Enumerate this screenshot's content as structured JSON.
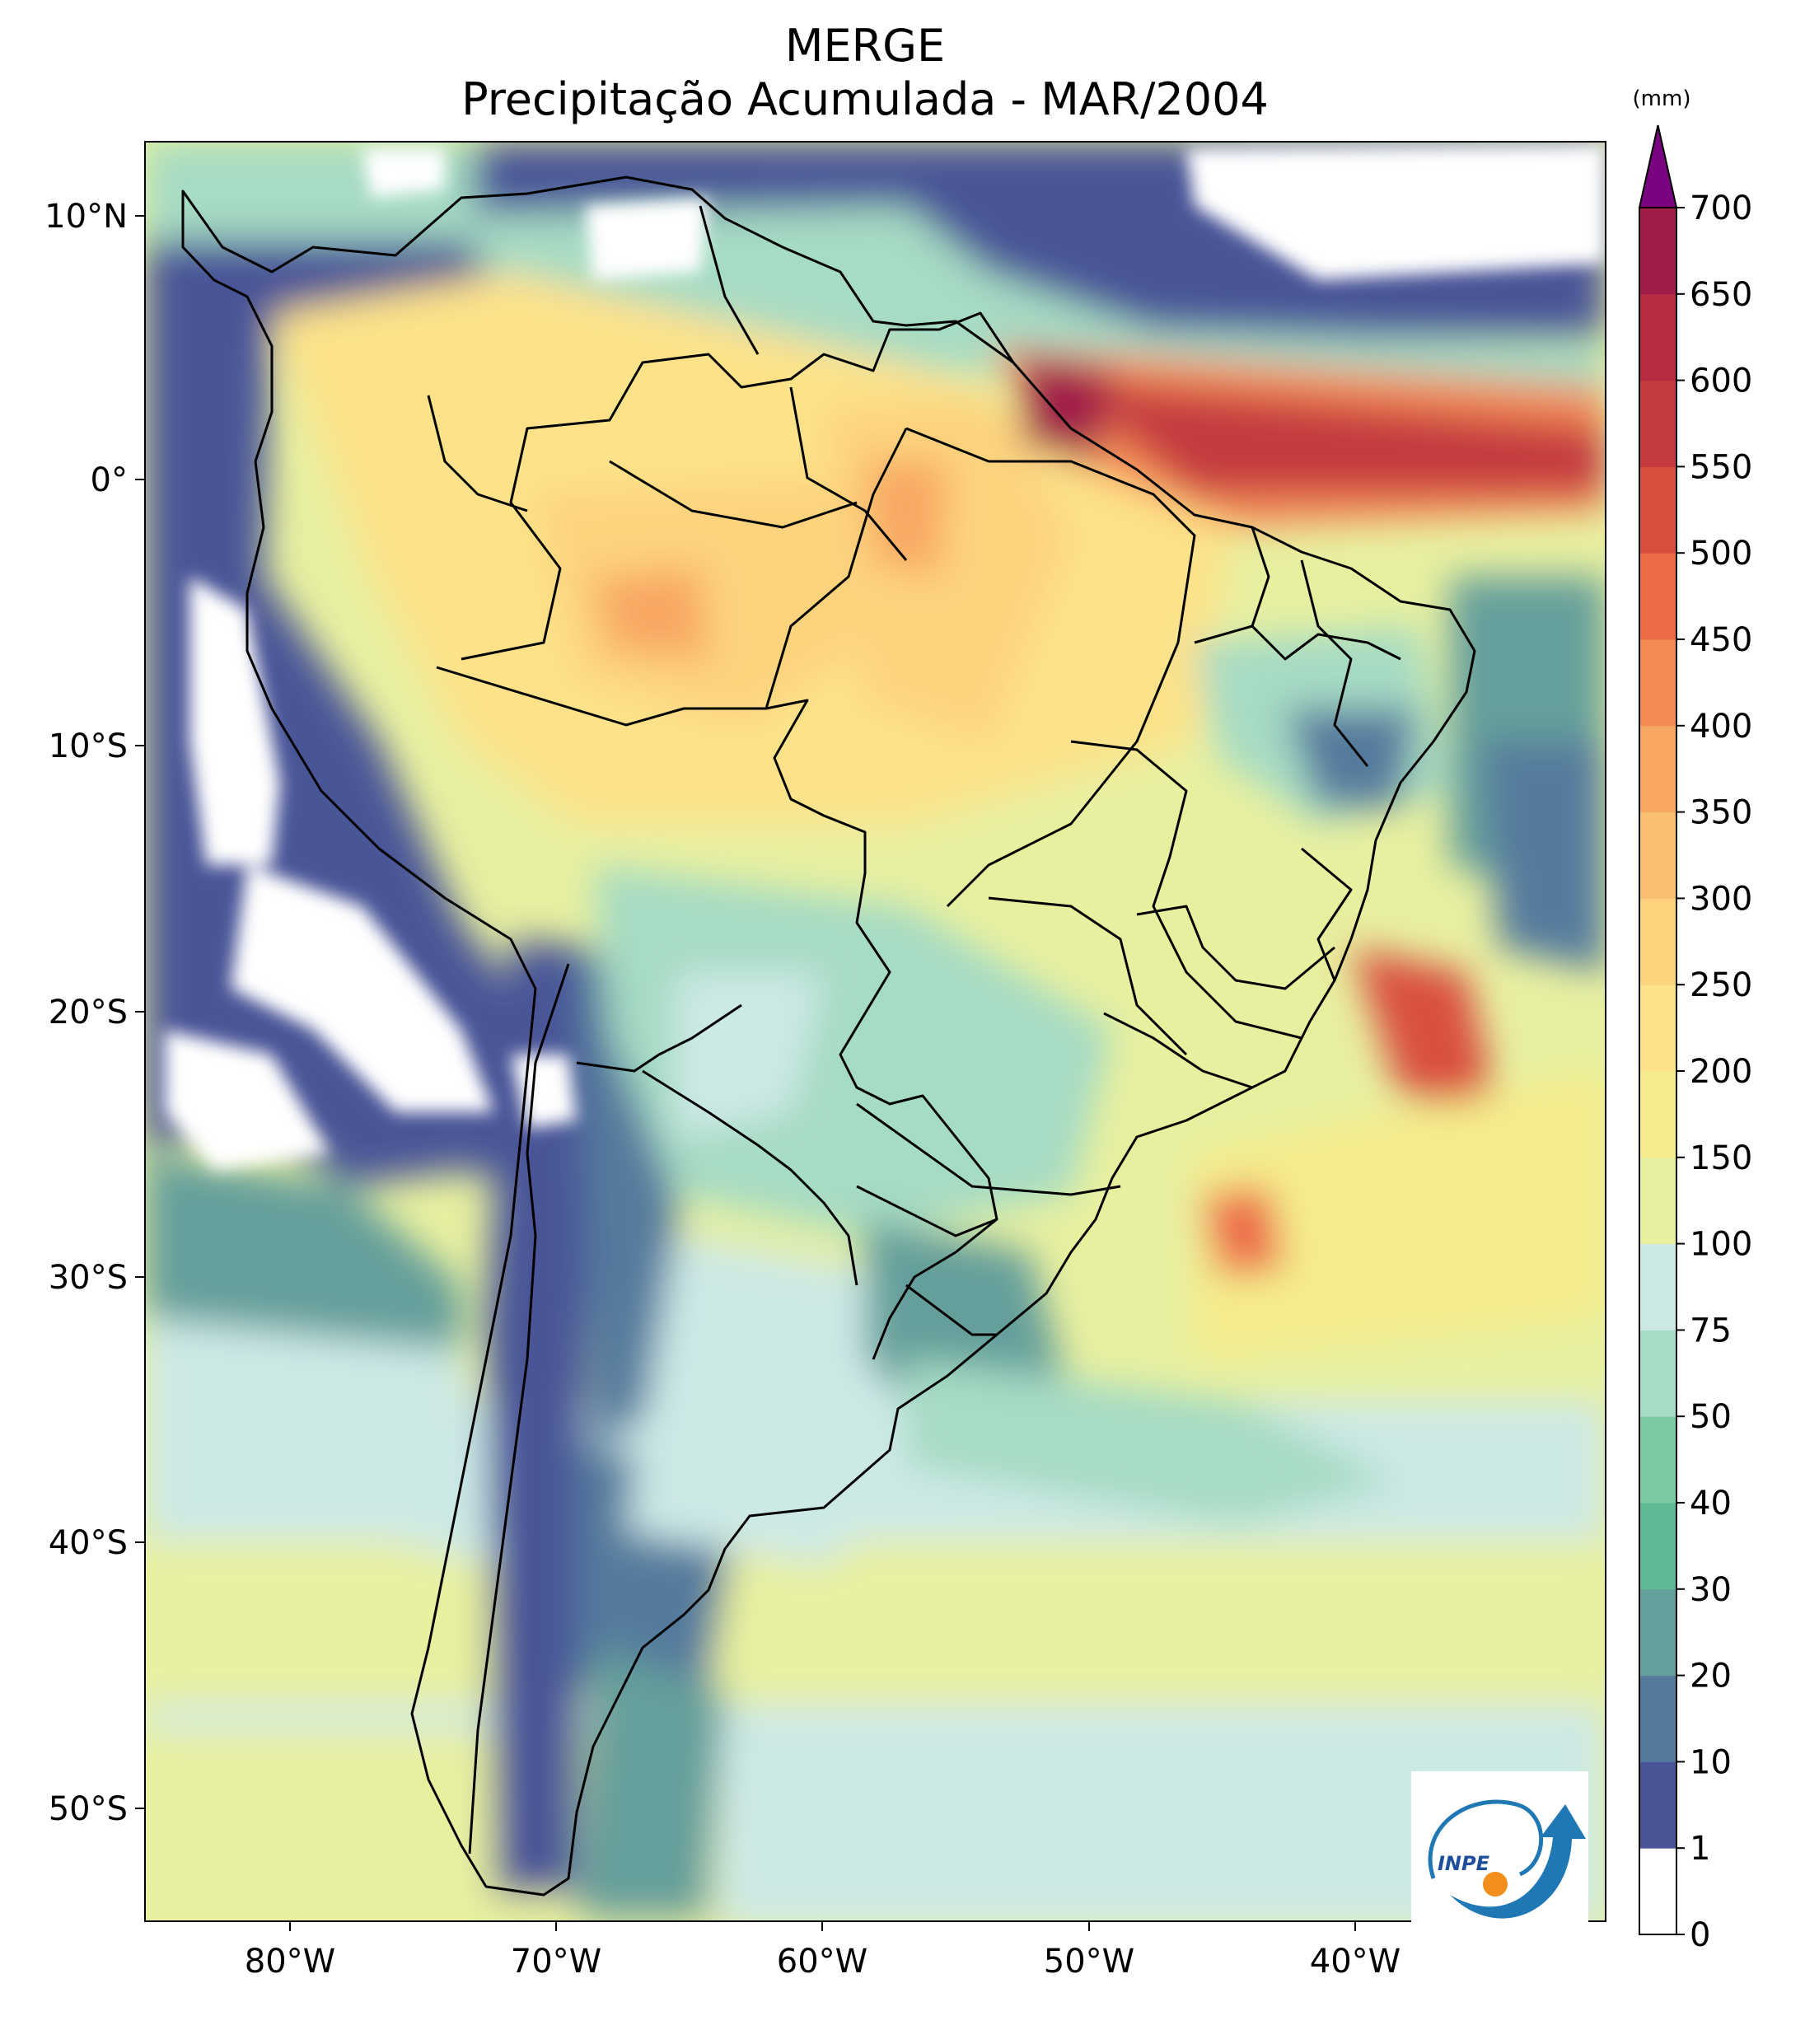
{
  "title": {
    "line1": "MERGE",
    "line2": "Precipitação Acumulada - MAR/2004"
  },
  "axes": {
    "lon_ticks": [
      "80°W",
      "70°W",
      "60°W",
      "50°W",
      "40°W"
    ],
    "lat_ticks": [
      "10°N",
      "0°",
      "10°S",
      "20°S",
      "30°S",
      "40°S",
      "50°S"
    ]
  },
  "colorbar": {
    "unit": "(mm)",
    "levels": [
      "0",
      "1",
      "10",
      "20",
      "30",
      "40",
      "50",
      "75",
      "100",
      "150",
      "200",
      "250",
      "300",
      "350",
      "400",
      "450",
      "500",
      "550",
      "600",
      "650",
      "700"
    ],
    "colors": [
      "#ffffff",
      "#4a5597",
      "#557a9d",
      "#659f9b",
      "#60b995",
      "#7bcba2",
      "#a6dbc4",
      "#cde9e6",
      "#e8f0a0",
      "#f5ec8d",
      "#fde28a",
      "#fdd37e",
      "#fbbf71",
      "#f8a763",
      "#f48a54",
      "#ec6a46",
      "#d94f3f",
      "#c43a3f",
      "#b62d43",
      "#a01c49"
    ],
    "extend_color": "#7a0380"
  },
  "logo": {
    "text": "INPE"
  }
}
